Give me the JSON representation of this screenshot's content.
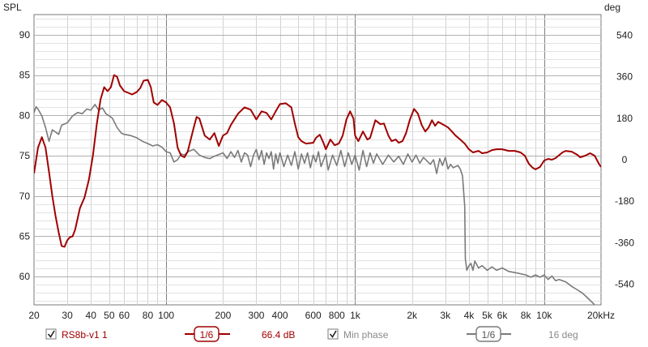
{
  "chart_data": {
    "type": "line",
    "left_axis_label": "SPL",
    "right_axis_label": "deg",
    "x_scale": "log",
    "xlim": [
      20,
      20000
    ],
    "ylim_left": [
      56.5,
      92.5
    ],
    "ylim_right": [
      -630,
      630
    ],
    "y_ticks_left": [
      90,
      85,
      80,
      75,
      70,
      65,
      60
    ],
    "y_ticks_right": [
      540,
      360,
      180,
      0,
      -180,
      -360,
      -540
    ],
    "x_ticks": [
      {
        "value": 20,
        "label": "20"
      },
      {
        "value": 30,
        "label": "30"
      },
      {
        "value": 40,
        "label": "40"
      },
      {
        "value": 50,
        "label": "50"
      },
      {
        "value": 60,
        "label": "60"
      },
      {
        "value": 80,
        "label": "80"
      },
      {
        "value": 100,
        "label": "100"
      },
      {
        "value": 200,
        "label": "200"
      },
      {
        "value": 300,
        "label": "300"
      },
      {
        "value": 400,
        "label": "400"
      },
      {
        "value": 600,
        "label": "600"
      },
      {
        "value": 800,
        "label": "800"
      },
      {
        "value": 1000,
        "label": "1k"
      },
      {
        "value": 2000,
        "label": "2k"
      },
      {
        "value": 3000,
        "label": "3k"
      },
      {
        "value": 4000,
        "label": "4k"
      },
      {
        "value": 5000,
        "label": "5k"
      },
      {
        "value": 6000,
        "label": "6k"
      },
      {
        "value": 8000,
        "label": "8k"
      },
      {
        "value": 10000,
        "label": "10k"
      },
      {
        "value": 20000,
        "label": "20kHz"
      }
    ],
    "grid": true,
    "series": [
      {
        "name": "RS8b-v1 1",
        "axis": "left",
        "color": "#a00000",
        "points": [
          [
            20,
            72.8
          ],
          [
            21,
            76.0
          ],
          [
            22,
            77.3
          ],
          [
            23,
            76.0
          ],
          [
            24,
            73.0
          ],
          [
            25,
            70.0
          ],
          [
            26,
            67.5
          ],
          [
            27,
            65.5
          ],
          [
            28,
            63.8
          ],
          [
            29,
            63.7
          ],
          [
            30,
            64.5
          ],
          [
            31,
            64.9
          ],
          [
            32,
            65.0
          ],
          [
            33,
            65.8
          ],
          [
            35,
            68.5
          ],
          [
            37,
            69.8
          ],
          [
            39,
            72.0
          ],
          [
            41,
            75.0
          ],
          [
            43,
            79.0
          ],
          [
            45,
            82.0
          ],
          [
            47,
            83.5
          ],
          [
            49,
            83.0
          ],
          [
            51,
            83.5
          ],
          [
            53,
            85.0
          ],
          [
            55,
            84.8
          ],
          [
            57,
            83.7
          ],
          [
            60,
            83.0
          ],
          [
            63,
            82.8
          ],
          [
            66,
            82.6
          ],
          [
            70,
            82.9
          ],
          [
            73,
            83.4
          ],
          [
            76,
            84.3
          ],
          [
            80,
            84.4
          ],
          [
            83,
            83.5
          ],
          [
            86,
            81.6
          ],
          [
            90,
            81.3
          ],
          [
            95,
            81.9
          ],
          [
            100,
            81.6
          ],
          [
            105,
            81.0
          ],
          [
            110,
            79.0
          ],
          [
            115,
            76.0
          ],
          [
            120,
            75.0
          ],
          [
            125,
            74.8
          ],
          [
            130,
            75.5
          ],
          [
            140,
            78.5
          ],
          [
            145,
            79.8
          ],
          [
            150,
            79.6
          ],
          [
            160,
            77.5
          ],
          [
            170,
            77.0
          ],
          [
            180,
            77.8
          ],
          [
            190,
            76.2
          ],
          [
            200,
            77.5
          ],
          [
            210,
            77.8
          ],
          [
            220,
            78.8
          ],
          [
            240,
            80.2
          ],
          [
            260,
            81.0
          ],
          [
            280,
            80.7
          ],
          [
            300,
            79.5
          ],
          [
            320,
            80.5
          ],
          [
            340,
            80.3
          ],
          [
            360,
            79.5
          ],
          [
            380,
            80.5
          ],
          [
            400,
            81.4
          ],
          [
            430,
            81.5
          ],
          [
            460,
            81.0
          ],
          [
            480,
            79.0
          ],
          [
            500,
            77.3
          ],
          [
            520,
            76.8
          ],
          [
            550,
            76.5
          ],
          [
            600,
            76.6
          ],
          [
            620,
            77.2
          ],
          [
            650,
            77.6
          ],
          [
            680,
            76.6
          ],
          [
            700,
            75.8
          ],
          [
            740,
            77.0
          ],
          [
            780,
            76.3
          ],
          [
            820,
            76.5
          ],
          [
            860,
            77.5
          ],
          [
            900,
            79.5
          ],
          [
            940,
            80.5
          ],
          [
            980,
            79.6
          ],
          [
            1000,
            77.5
          ],
          [
            1040,
            76.8
          ],
          [
            1100,
            78.0
          ],
          [
            1160,
            77.0
          ],
          [
            1200,
            77.2
          ],
          [
            1280,
            79.4
          ],
          [
            1360,
            78.9
          ],
          [
            1420,
            79.0
          ],
          [
            1500,
            77.5
          ],
          [
            1560,
            76.8
          ],
          [
            1640,
            77.0
          ],
          [
            1700,
            76.6
          ],
          [
            1780,
            76.8
          ],
          [
            1860,
            77.8
          ],
          [
            1950,
            79.5
          ],
          [
            2050,
            80.8
          ],
          [
            2150,
            80.2
          ],
          [
            2250,
            78.8
          ],
          [
            2350,
            78.0
          ],
          [
            2450,
            78.5
          ],
          [
            2550,
            79.4
          ],
          [
            2650,
            78.7
          ],
          [
            2750,
            79.2
          ],
          [
            2850,
            79.0
          ],
          [
            2950,
            78.8
          ],
          [
            3100,
            78.5
          ],
          [
            3250,
            78.0
          ],
          [
            3400,
            77.5
          ],
          [
            3600,
            77.0
          ],
          [
            3800,
            76.5
          ],
          [
            4000,
            75.8
          ],
          [
            4200,
            75.4
          ],
          [
            4500,
            75.6
          ],
          [
            4700,
            75.3
          ],
          [
            5000,
            75.4
          ],
          [
            5300,
            75.7
          ],
          [
            5600,
            75.8
          ],
          [
            6000,
            75.8
          ],
          [
            6500,
            75.6
          ],
          [
            7000,
            75.6
          ],
          [
            7500,
            75.4
          ],
          [
            7900,
            75.0
          ],
          [
            8300,
            74.0
          ],
          [
            8700,
            73.5
          ],
          [
            9000,
            73.3
          ],
          [
            9500,
            73.6
          ],
          [
            10000,
            74.4
          ],
          [
            10500,
            74.6
          ],
          [
            11000,
            74.5
          ],
          [
            11500,
            74.7
          ],
          [
            12500,
            75.4
          ],
          [
            13000,
            75.6
          ],
          [
            14000,
            75.5
          ],
          [
            15000,
            75.1
          ],
          [
            15500,
            74.8
          ],
          [
            16500,
            75.0
          ],
          [
            17500,
            75.3
          ],
          [
            18500,
            75.0
          ],
          [
            19500,
            74.0
          ],
          [
            20000,
            73.6
          ]
        ]
      },
      {
        "name": "Min phase",
        "axis": "right",
        "color": "#7a7a7a",
        "points": [
          [
            20,
            205
          ],
          [
            20.5,
            230
          ],
          [
            21,
            220
          ],
          [
            22,
            190
          ],
          [
            23,
            140
          ],
          [
            24,
            80
          ],
          [
            25,
            130
          ],
          [
            26,
            120
          ],
          [
            27,
            110
          ],
          [
            28,
            150
          ],
          [
            30,
            160
          ],
          [
            32,
            190
          ],
          [
            34,
            205
          ],
          [
            36,
            200
          ],
          [
            38,
            220
          ],
          [
            40,
            215
          ],
          [
            42,
            240
          ],
          [
            44,
            215
          ],
          [
            46,
            225
          ],
          [
            48,
            200
          ],
          [
            50,
            190
          ],
          [
            52,
            180
          ],
          [
            55,
            140
          ],
          [
            58,
            115
          ],
          [
            60,
            110
          ],
          [
            65,
            105
          ],
          [
            70,
            95
          ],
          [
            75,
            80
          ],
          [
            80,
            70
          ],
          [
            85,
            60
          ],
          [
            90,
            65
          ],
          [
            95,
            55
          ],
          [
            100,
            35
          ],
          [
            105,
            30
          ],
          [
            110,
            -10
          ],
          [
            115,
            0
          ],
          [
            120,
            25
          ],
          [
            125,
            20
          ],
          [
            130,
            35
          ],
          [
            140,
            45
          ],
          [
            150,
            20
          ],
          [
            160,
            10
          ],
          [
            170,
            5
          ],
          [
            180,
            15
          ],
          [
            200,
            30
          ],
          [
            210,
            5
          ],
          [
            220,
            35
          ],
          [
            230,
            10
          ],
          [
            240,
            40
          ],
          [
            250,
            -10
          ],
          [
            260,
            30
          ],
          [
            270,
            20
          ],
          [
            280,
            -30
          ],
          [
            290,
            20
          ],
          [
            300,
            45
          ],
          [
            310,
            0
          ],
          [
            320,
            40
          ],
          [
            330,
            -20
          ],
          [
            340,
            30
          ],
          [
            350,
            5
          ],
          [
            360,
            35
          ],
          [
            370,
            -40
          ],
          [
            380,
            25
          ],
          [
            390,
            -15
          ],
          [
            400,
            30
          ],
          [
            420,
            -30
          ],
          [
            440,
            20
          ],
          [
            460,
            -25
          ],
          [
            480,
            35
          ],
          [
            500,
            -40
          ],
          [
            520,
            25
          ],
          [
            540,
            -15
          ],
          [
            560,
            30
          ],
          [
            580,
            -35
          ],
          [
            600,
            20
          ],
          [
            620,
            -10
          ],
          [
            640,
            35
          ],
          [
            660,
            -30
          ],
          [
            700,
            25
          ],
          [
            720,
            -45
          ],
          [
            760,
            20
          ],
          [
            800,
            -25
          ],
          [
            840,
            40
          ],
          [
            880,
            -30
          ],
          [
            920,
            30
          ],
          [
            960,
            -20
          ],
          [
            1000,
            20
          ],
          [
            1050,
            -45
          ],
          [
            1100,
            40
          ],
          [
            1150,
            -30
          ],
          [
            1200,
            30
          ],
          [
            1250,
            -15
          ],
          [
            1300,
            25
          ],
          [
            1400,
            -20
          ],
          [
            1500,
            20
          ],
          [
            1600,
            -10
          ],
          [
            1700,
            15
          ],
          [
            1800,
            -20
          ],
          [
            1900,
            25
          ],
          [
            2000,
            -10
          ],
          [
            2100,
            20
          ],
          [
            2200,
            -15
          ],
          [
            2300,
            10
          ],
          [
            2400,
            -5
          ],
          [
            2500,
            -20
          ],
          [
            2600,
            0
          ],
          [
            2700,
            -60
          ],
          [
            2800,
            5
          ],
          [
            2900,
            -25
          ],
          [
            3000,
            10
          ],
          [
            3100,
            -40
          ],
          [
            3200,
            -20
          ],
          [
            3300,
            -35
          ],
          [
            3400,
            -30
          ],
          [
            3500,
            -25
          ],
          [
            3600,
            -40
          ],
          [
            3700,
            -70
          ],
          [
            3800,
            -200
          ],
          [
            3830,
            -430
          ],
          [
            3900,
            -480
          ],
          [
            4000,
            -460
          ],
          [
            4100,
            -450
          ],
          [
            4200,
            -480
          ],
          [
            4300,
            -440
          ],
          [
            4500,
            -470
          ],
          [
            4700,
            -460
          ],
          [
            5000,
            -480
          ],
          [
            5300,
            -465
          ],
          [
            5600,
            -480
          ],
          [
            6000,
            -470
          ],
          [
            6500,
            -485
          ],
          [
            7000,
            -490
          ],
          [
            7500,
            -495
          ],
          [
            8000,
            -500
          ],
          [
            8500,
            -510
          ],
          [
            9000,
            -500
          ],
          [
            9500,
            -510
          ],
          [
            10000,
            -500
          ],
          [
            10500,
            -520
          ],
          [
            11000,
            -505
          ],
          [
            11500,
            -525
          ],
          [
            12000,
            -520
          ],
          [
            13000,
            -530
          ],
          [
            14000,
            -550
          ],
          [
            15000,
            -565
          ],
          [
            16000,
            -580
          ],
          [
            17000,
            -600
          ],
          [
            18000,
            -620
          ],
          [
            19000,
            -640
          ],
          [
            20000,
            -660
          ]
        ]
      }
    ]
  },
  "legend": {
    "series1_name": "RS8b-v1 1",
    "series1_checked": true,
    "series1_smoothing": "1/6",
    "series1_value": "66.4 dB",
    "series2_name": "Min phase",
    "series2_checked": true,
    "series2_smoothing": "1/6",
    "series2_value": "16 deg",
    "color_series1": "#a00000",
    "color_series2": "#7a7a7a"
  }
}
